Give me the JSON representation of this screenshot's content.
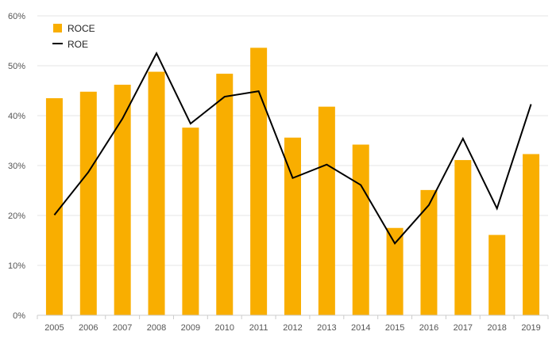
{
  "chart_data": {
    "type": "bar",
    "categories": [
      "2005",
      "2006",
      "2007",
      "2008",
      "2009",
      "2010",
      "2011",
      "2012",
      "2013",
      "2014",
      "2015",
      "2016",
      "2017",
      "2018",
      "2019"
    ],
    "series": [
      {
        "name": "ROCE",
        "type": "bar",
        "color": "#F9AE00",
        "values": [
          43.5,
          44.8,
          46.2,
          48.8,
          37.6,
          48.4,
          53.6,
          35.6,
          41.8,
          34.2,
          17.5,
          25.1,
          31.1,
          16.1,
          32.3
        ]
      },
      {
        "name": "ROE",
        "type": "line",
        "color": "#000000",
        "values": [
          20.1,
          28.7,
          39.4,
          52.5,
          38.4,
          43.8,
          44.9,
          27.5,
          30.2,
          26.1,
          14.4,
          22.1,
          35.4,
          21.4,
          42.3
        ]
      }
    ],
    "yticks": [
      "0%",
      "10%",
      "20%",
      "30%",
      "40%",
      "50%",
      "60%"
    ],
    "ylim": [
      0,
      60
    ],
    "grid": true,
    "legend": "top-left"
  }
}
